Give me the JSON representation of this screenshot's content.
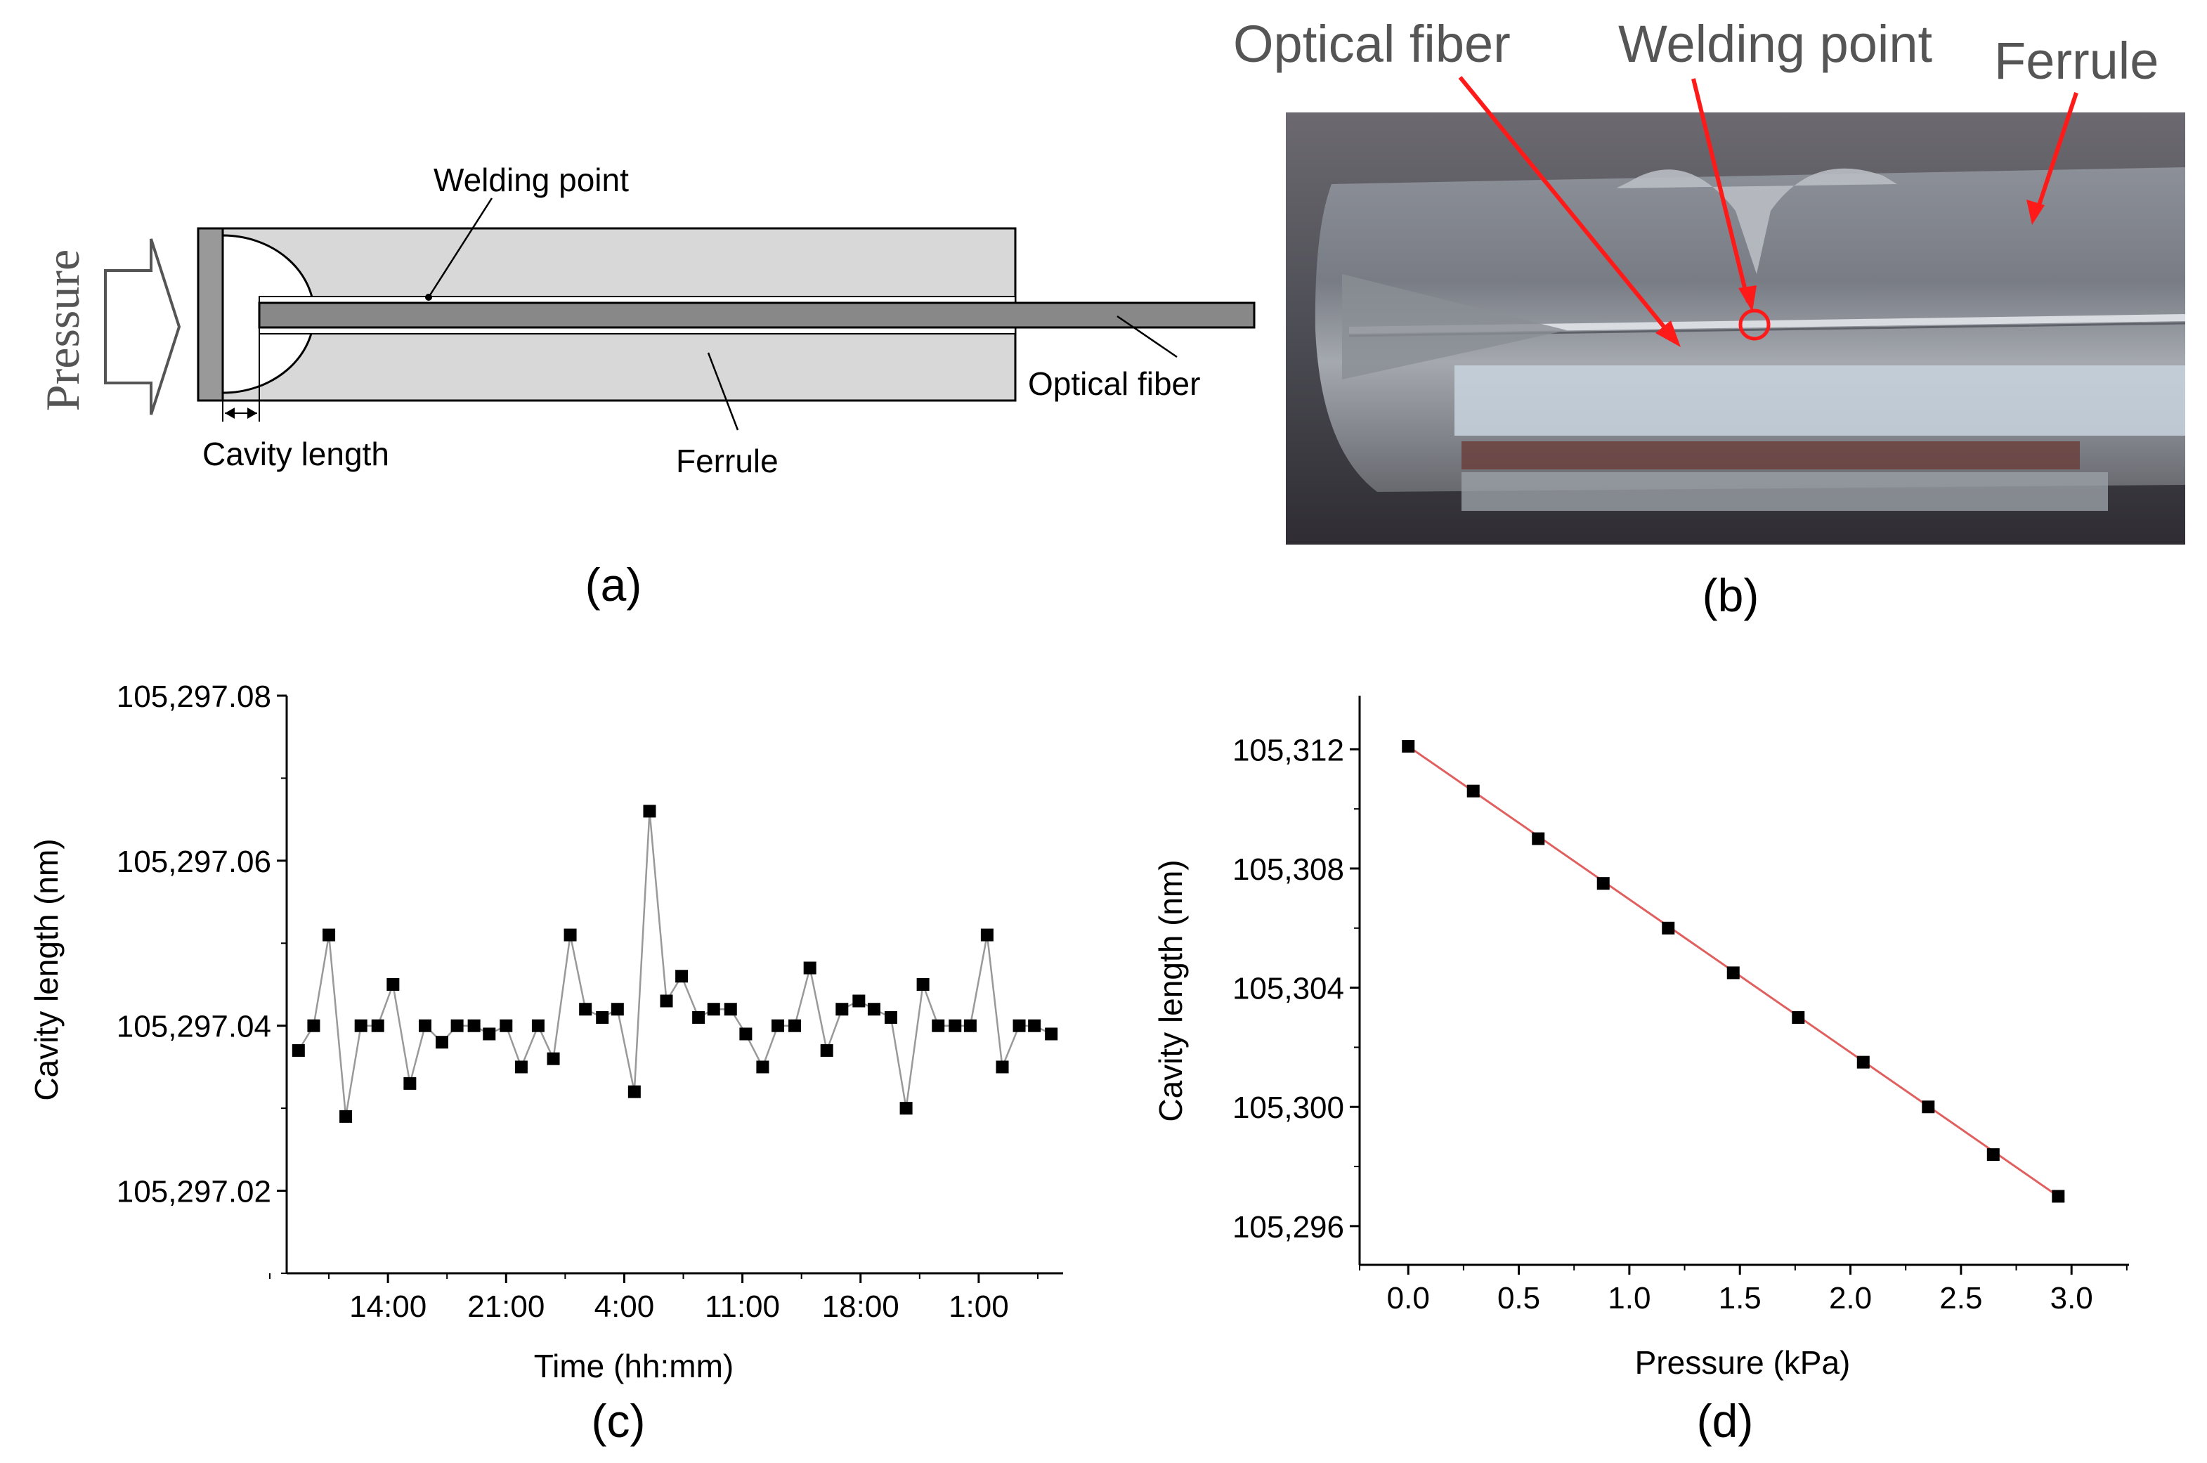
{
  "panel_a": {
    "pressure_label": "Pressure",
    "welding_point_label": "Welding point",
    "optical_fiber_label": "Optical fiber",
    "cavity_length_label": "Cavity length",
    "ferrule_label": "Ferrule",
    "caption": "(a)"
  },
  "panel_b": {
    "optical_fiber_label": "Optical fiber",
    "welding_point_label": "Welding point",
    "ferrule_label": "Ferrule",
    "caption": "(b)",
    "arrow_color": "#ff1a1a"
  },
  "chart_data": [
    {
      "id": "c",
      "type": "line",
      "caption": "(c)",
      "xlabel": "Time (hh:mm)",
      "ylabel": "Cavity length (nm)",
      "x_tick_labels": [
        "14:00",
        "21:00",
        "4:00",
        "11:00",
        "18:00",
        "1:00"
      ],
      "y_tick_labels": [
        "105,297.02",
        "105,297.04",
        "105,297.06",
        "105,297.08"
      ],
      "y_ticks": [
        105297.02,
        105297.04,
        105297.06,
        105297.08
      ],
      "ylim": [
        105297.01,
        105297.08
      ],
      "x_unit": "hours from start",
      "x_tick_positions_hours": [
        14,
        21,
        28,
        35,
        42,
        49
      ],
      "xlim": [
        8,
        54
      ],
      "x": [
        8.7,
        9.6,
        10.5,
        11.5,
        12.4,
        13.4,
        14.3,
        15.3,
        16.2,
        17.2,
        18.1,
        19.1,
        20.0,
        21.0,
        21.9,
        22.9,
        23.8,
        24.8,
        25.7,
        26.7,
        27.6,
        28.6,
        29.5,
        30.5,
        31.4,
        32.4,
        33.3,
        34.3,
        35.2,
        36.2,
        37.1,
        38.1,
        39.0,
        40.0,
        40.9,
        41.9,
        42.8,
        43.8,
        44.7,
        45.7,
        46.6,
        47.6,
        48.5,
        49.5,
        50.4,
        51.4,
        52.3,
        53.3
      ],
      "values": [
        105297.037,
        105297.04,
        105297.051,
        105297.029,
        105297.04,
        105297.04,
        105297.045,
        105297.033,
        105297.04,
        105297.038,
        105297.04,
        105297.04,
        105297.039,
        105297.04,
        105297.035,
        105297.04,
        105297.036,
        105297.051,
        105297.042,
        105297.041,
        105297.042,
        105297.032,
        105297.066,
        105297.043,
        105297.046,
        105297.041,
        105297.042,
        105297.042,
        105297.039,
        105297.035,
        105297.04,
        105297.04,
        105297.047,
        105297.037,
        105297.042,
        105297.043,
        105297.042,
        105297.041,
        105297.03,
        105297.045,
        105297.04,
        105297.04,
        105297.04,
        105297.051,
        105297.035,
        105297.04,
        105297.04,
        105297.039
      ],
      "line_color": "#999999",
      "marker_color": "#000000"
    },
    {
      "id": "d",
      "type": "scatter",
      "caption": "(d)",
      "xlabel": "Pressure (kPa)",
      "ylabel": "Cavity length (nm)",
      "x_tick_labels": [
        "0.0",
        "0.5",
        "1.0",
        "1.5",
        "2.0",
        "2.5",
        "3.0"
      ],
      "x_ticks": [
        0.0,
        0.5,
        1.0,
        1.5,
        2.0,
        2.5,
        3.0
      ],
      "y_tick_labels": [
        "105,296",
        "105,300",
        "105,304",
        "105,308",
        "105,312"
      ],
      "y_ticks": [
        105296,
        105300,
        105304,
        105308,
        105312
      ],
      "xlim": [
        -0.22,
        3.26
      ],
      "ylim": [
        105294.7,
        105313.8
      ],
      "x": [
        0.0,
        0.294,
        0.588,
        0.882,
        1.176,
        1.47,
        1.764,
        2.058,
        2.352,
        2.646,
        2.94
      ],
      "values": [
        105312.1,
        105310.6,
        105309.0,
        105307.5,
        105306.0,
        105304.5,
        105303.0,
        105301.5,
        105300.0,
        105298.4,
        105297.0
      ],
      "fit_line": {
        "x": [
          0.0,
          2.94
        ],
        "y": [
          105312.1,
          105297.0
        ]
      },
      "fit_color": "#e06060",
      "marker_color": "#000000"
    }
  ]
}
